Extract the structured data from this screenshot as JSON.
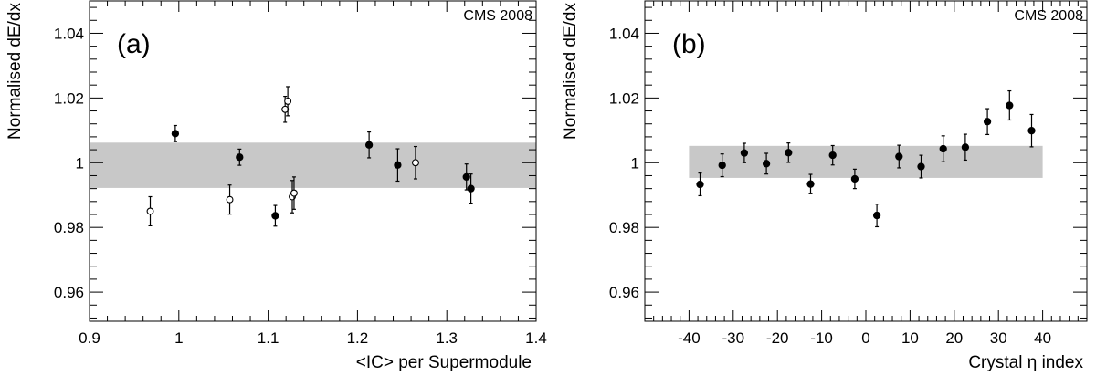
{
  "chart_data": [
    {
      "type": "scatter",
      "panel_label": "(a)",
      "title": "CMS 2008",
      "xlabel": "<IC> per Supermodule",
      "ylabel": "Normalised dE/dx",
      "xlim": [
        0.9,
        1.4
      ],
      "ylim": [
        0.951,
        1.05
      ],
      "x_ticks": [
        0.9,
        1.0,
        1.1,
        1.2,
        1.3,
        1.4
      ],
      "x_tick_labels": [
        "0.9",
        "1",
        "1.1",
        "1.2",
        "1.3",
        "1.4"
      ],
      "y_ticks": [
        0.96,
        0.98,
        1.0,
        1.02,
        1.04
      ],
      "y_tick_labels": [
        "0.96",
        "0.98",
        "1",
        "1.02",
        "1.04"
      ],
      "band": {
        "ymin": 0.9922,
        "ymax": 1.0062,
        "color": "#c8c8c8"
      },
      "series": [
        {
          "marker": "filled-circle",
          "points": [
            {
              "x": 0.996,
              "y": 1.009,
              "err": 0.0025
            },
            {
              "x": 1.068,
              "y": 1.0017,
              "err": 0.0025
            },
            {
              "x": 1.108,
              "y": 0.9836,
              "err": 0.0032
            },
            {
              "x": 1.213,
              "y": 1.0055,
              "err": 0.004
            },
            {
              "x": 1.245,
              "y": 0.9993,
              "err": 0.005
            },
            {
              "x": 1.322,
              "y": 0.9956,
              "err": 0.004
            },
            {
              "x": 1.327,
              "y": 0.992,
              "err": 0.0045
            }
          ]
        },
        {
          "marker": "open-circle",
          "points": [
            {
              "x": 0.968,
              "y": 0.985,
              "err": 0.0045
            },
            {
              "x": 1.057,
              "y": 0.9886,
              "err": 0.0045
            },
            {
              "x": 1.119,
              "y": 1.0165,
              "err": 0.004
            },
            {
              "x": 1.122,
              "y": 1.019,
              "err": 0.0045
            },
            {
              "x": 1.127,
              "y": 0.9895,
              "err": 0.005
            },
            {
              "x": 1.129,
              "y": 0.9906,
              "err": 0.005
            },
            {
              "x": 1.265,
              "y": 1.0,
              "err": 0.005
            }
          ]
        }
      ]
    },
    {
      "type": "scatter",
      "panel_label": "(b)",
      "title": "CMS 2008",
      "xlabel": "Crystal η index",
      "ylabel": "Normalised dE/dx",
      "xlim": [
        -50,
        50
      ],
      "ylim": [
        0.951,
        1.05
      ],
      "x_ticks": [
        -40,
        -30,
        -20,
        -10,
        0,
        10,
        20,
        30,
        40
      ],
      "x_tick_labels": [
        "-40",
        "-30",
        "-20",
        "-10",
        "0",
        "10",
        "20",
        "30",
        "40"
      ],
      "y_ticks": [
        0.96,
        0.98,
        1.0,
        1.02,
        1.04
      ],
      "y_tick_labels": [
        "0.96",
        "0.98",
        "1",
        "1.02",
        "1.04"
      ],
      "band": {
        "ymin": 0.9953,
        "ymax": 1.0052,
        "color": "#c8c8c8",
        "xmin": -40,
        "xmax": 40
      },
      "series": [
        {
          "marker": "filled-circle",
          "points": [
            {
              "x": -37.5,
              "y": 0.9933,
              "err": 0.0035
            },
            {
              "x": -32.5,
              "y": 0.9992,
              "err": 0.0035
            },
            {
              "x": -27.5,
              "y": 1.003,
              "err": 0.003
            },
            {
              "x": -22.5,
              "y": 0.9997,
              "err": 0.0032
            },
            {
              "x": -17.5,
              "y": 1.0031,
              "err": 0.003
            },
            {
              "x": -12.5,
              "y": 0.9934,
              "err": 0.003
            },
            {
              "x": -7.5,
              "y": 1.0023,
              "err": 0.003
            },
            {
              "x": -2.5,
              "y": 0.995,
              "err": 0.003
            },
            {
              "x": 2.5,
              "y": 0.9837,
              "err": 0.0035
            },
            {
              "x": 7.5,
              "y": 1.0019,
              "err": 0.0035
            },
            {
              "x": 12.5,
              "y": 0.9988,
              "err": 0.0035
            },
            {
              "x": 17.5,
              "y": 1.0043,
              "err": 0.004
            },
            {
              "x": 22.5,
              "y": 1.0048,
              "err": 0.004
            },
            {
              "x": 27.5,
              "y": 1.0127,
              "err": 0.004
            },
            {
              "x": 32.5,
              "y": 1.0177,
              "err": 0.0045
            },
            {
              "x": 37.5,
              "y": 1.0099,
              "err": 0.005
            }
          ]
        }
      ]
    }
  ]
}
